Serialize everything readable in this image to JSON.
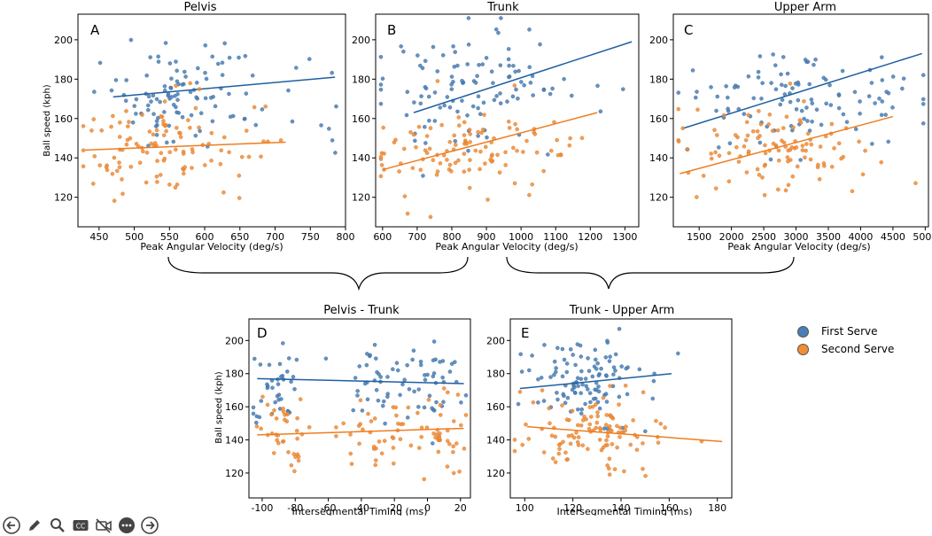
{
  "colors": {
    "first": "#4a7fb5",
    "second": "#f28c34",
    "firstLine": "#1f5fa0",
    "secondLine": "#ef7d1e"
  },
  "legend": {
    "first_label": "First Serve",
    "second_label": "Second Serve"
  },
  "toolbar": {
    "buttons": [
      {
        "icon": "back-arrow-icon"
      },
      {
        "icon": "pencil-icon"
      },
      {
        "icon": "search-icon"
      },
      {
        "icon": "closed-captions-icon"
      },
      {
        "icon": "camera-off-icon"
      },
      {
        "icon": "more-icon"
      },
      {
        "icon": "forward-arrow-icon"
      }
    ]
  },
  "chart_data": [
    {
      "type": "scatter",
      "id": "A",
      "title": "Pelvis",
      "letter": "A",
      "xlabel": "Peak Angular Velocity (deg/s)",
      "ylabel": "Ball speed (kph)",
      "xlim": [
        420,
        800
      ],
      "ylim": [
        105,
        213
      ],
      "xticks": [
        450,
        500,
        550,
        600,
        650,
        700,
        750,
        800
      ],
      "yticks": [
        120,
        140,
        160,
        180,
        200
      ],
      "series": [
        {
          "name": "First Serve",
          "center": [
            565,
            172
          ],
          "spread": [
            55,
            13
          ],
          "n": 110,
          "x_extra_tail": [
            600,
            790
          ],
          "fit": [
            [
              470,
              171
            ],
            [
              785,
              181
            ]
          ]
        },
        {
          "name": "Second Serve",
          "center": [
            545,
            145
          ],
          "spread": [
            60,
            11
          ],
          "n": 110,
          "x_extra_tail": [
            430,
            720
          ],
          "fit": [
            [
              430,
              144
            ],
            [
              715,
              148
            ]
          ]
        }
      ]
    },
    {
      "type": "scatter",
      "id": "B",
      "title": "Trunk",
      "letter": "B",
      "xlabel": "Peak Angular Velocity (deg/s)",
      "ylabel": "",
      "xlim": [
        580,
        1340
      ],
      "ylim": [
        105,
        213
      ],
      "xticks": [
        600,
        700,
        800,
        900,
        1000,
        1100,
        1200,
        1300
      ],
      "yticks": [
        120,
        140,
        160,
        180,
        200
      ],
      "series": [
        {
          "name": "First Serve",
          "center": [
            830,
            175
          ],
          "spread": [
            110,
            13
          ],
          "n": 110,
          "x_extra_tail": [
            700,
            1320
          ],
          "fit": [
            [
              690,
              163
            ],
            [
              1320,
              199
            ]
          ]
        },
        {
          "name": "Second Serve",
          "center": [
            820,
            143
          ],
          "spread": [
            140,
            11
          ],
          "n": 110,
          "x_extra_tail": [
            600,
            1220
          ],
          "fit": [
            [
              600,
              134
            ],
            [
              1220,
              163
            ]
          ]
        }
      ]
    },
    {
      "type": "scatter",
      "id": "C",
      "title": "Upper Arm",
      "letter": "C",
      "xlabel": "Peak Angular Velocity (deg/s)",
      "ylabel": "",
      "xlim": [
        1100,
        5050
      ],
      "ylim": [
        105,
        213
      ],
      "xticks": [
        1500,
        2000,
        2500,
        3000,
        3500,
        4000,
        4500,
        5000
      ],
      "yticks": [
        120,
        140,
        160,
        180,
        200
      ],
      "series": [
        {
          "name": "First Serve",
          "center": [
            3000,
            172
          ],
          "spread": [
            900,
            13
          ],
          "n": 110,
          "x_extra_tail": [
            1250,
            4950
          ],
          "fit": [
            [
              1250,
              155
            ],
            [
              4950,
              193
            ]
          ]
        },
        {
          "name": "Second Serve",
          "center": [
            2700,
            143
          ],
          "spread": [
            800,
            11
          ],
          "n": 110,
          "x_extra_tail": [
            1200,
            4450
          ],
          "fit": [
            [
              1200,
              132
            ],
            [
              4500,
              161
            ]
          ]
        }
      ]
    },
    {
      "type": "scatter",
      "id": "D",
      "title": "Pelvis - Trunk",
      "letter": "D",
      "xlabel": "Intersegmental Timing (ms)",
      "ylabel": "Ball speed (kph)",
      "xlim": [
        -108,
        26
      ],
      "ylim": [
        105,
        213
      ],
      "xticks": [
        -100,
        -80,
        -60,
        -40,
        -20,
        0,
        20
      ],
      "yticks": [
        120,
        140,
        160,
        180,
        200
      ],
      "series": [
        {
          "name": "First Serve",
          "clusters": [
            [
              -92,
              8
            ],
            [
              -30,
              12
            ],
            [
              5,
              10
            ]
          ],
          "centerY": 175,
          "spreadY": 13,
          "n": 110,
          "fit": [
            [
              -103,
              177
            ],
            [
              22,
              174
            ]
          ]
        },
        {
          "name": "Second Serve",
          "clusters": [
            [
              -88,
              7
            ],
            [
              -30,
              13
            ],
            [
              3,
              11
            ]
          ],
          "centerY": 143,
          "spreadY": 12,
          "n": 110,
          "fit": [
            [
              -103,
              143
            ],
            [
              22,
              147
            ]
          ]
        }
      ]
    },
    {
      "type": "scatter",
      "id": "E",
      "title": "Trunk - Upper Arm",
      "letter": "E",
      "xlabel": "Intersegmental Timing (ms)",
      "ylabel": "",
      "xlim": [
        94,
        186
      ],
      "ylim": [
        105,
        213
      ],
      "xticks": [
        100,
        120,
        140,
        160,
        180
      ],
      "yticks": [
        120,
        140,
        160,
        180,
        200
      ],
      "series": [
        {
          "name": "First Serve",
          "center": [
            125,
            176
          ],
          "spread": [
            11,
            13
          ],
          "n": 110,
          "x_extra_tail": [
            98,
            160
          ],
          "fit": [
            [
              98,
              171
            ],
            [
              161,
              180
            ]
          ]
        },
        {
          "name": "Second Serve",
          "center": [
            128,
            143
          ],
          "spread": [
            13,
            12
          ],
          "n": 110,
          "x_extra_tail": [
            100,
            182
          ],
          "fit": [
            [
              101,
              148
            ],
            [
              182,
              139
            ]
          ]
        }
      ]
    }
  ]
}
